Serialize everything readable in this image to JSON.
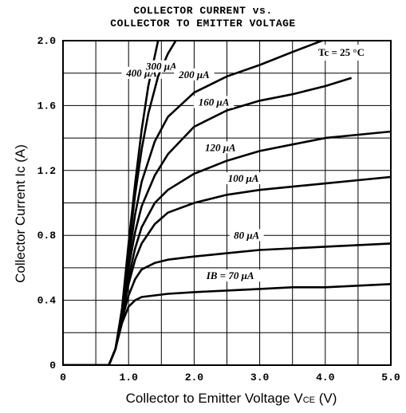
{
  "chart_data": {
    "type": "line",
    "title": [
      "COLLECTOR CURRENT vs.",
      "COLLECTOR TO EMITTER VOLTAGE"
    ],
    "xlabel": {
      "main": "Collector to Emitter Voltage  V",
      "sub": "CE",
      "unit": "  (V)"
    },
    "ylabel": "Collector Current  Ic  (A)",
    "xlim": [
      0,
      5.0
    ],
    "ylim": [
      0,
      2.0
    ],
    "x_ticks": [
      0,
      1.0,
      2.0,
      3.0,
      4.0,
      5.0
    ],
    "x_tick_labels": [
      "0",
      "1.0",
      "2.0",
      "3.0",
      "4.0",
      "5.0"
    ],
    "y_ticks": [
      0,
      0.4,
      0.8,
      1.2,
      1.6,
      2.0
    ],
    "y_tick_labels": [
      "0",
      "0.4",
      "0.8",
      "1.2",
      "1.6",
      "2.0"
    ],
    "grid": true,
    "annotation": "Tc = 25 °C",
    "series": [
      {
        "name": "400 μA",
        "label_at": [
          1.2,
          1.78
        ],
        "points": [
          [
            0,
            0
          ],
          [
            0.7,
            0
          ],
          [
            0.8,
            0.1
          ],
          [
            0.9,
            0.35
          ],
          [
            1.0,
            0.75
          ],
          [
            1.1,
            1.12
          ],
          [
            1.2,
            1.45
          ],
          [
            1.3,
            1.72
          ],
          [
            1.45,
            2.0
          ]
        ]
      },
      {
        "name": "300 μA",
        "label_at": [
          1.5,
          1.82
        ],
        "points": [
          [
            0,
            0
          ],
          [
            0.7,
            0
          ],
          [
            0.8,
            0.1
          ],
          [
            0.9,
            0.34
          ],
          [
            1.0,
            0.72
          ],
          [
            1.1,
            1.05
          ],
          [
            1.2,
            1.33
          ],
          [
            1.3,
            1.55
          ],
          [
            1.45,
            1.78
          ],
          [
            1.6,
            1.92
          ],
          [
            1.72,
            2.0
          ]
        ]
      },
      {
        "name": "200 μA",
        "label_at": [
          2.0,
          1.77
        ],
        "points": [
          [
            0,
            0
          ],
          [
            0.7,
            0
          ],
          [
            0.8,
            0.1
          ],
          [
            0.9,
            0.33
          ],
          [
            1.0,
            0.65
          ],
          [
            1.1,
            0.93
          ],
          [
            1.2,
            1.13
          ],
          [
            1.4,
            1.38
          ],
          [
            1.6,
            1.53
          ],
          [
            2.0,
            1.68
          ],
          [
            2.5,
            1.78
          ],
          [
            3.0,
            1.85
          ],
          [
            3.5,
            1.93
          ],
          [
            3.95,
            2.0
          ]
        ]
      },
      {
        "name": "160 μA",
        "label_at": [
          2.3,
          1.6
        ],
        "points": [
          [
            0,
            0
          ],
          [
            0.7,
            0
          ],
          [
            0.8,
            0.1
          ],
          [
            0.9,
            0.32
          ],
          [
            1.0,
            0.6
          ],
          [
            1.1,
            0.82
          ],
          [
            1.2,
            0.98
          ],
          [
            1.4,
            1.17
          ],
          [
            1.6,
            1.3
          ],
          [
            2.0,
            1.47
          ],
          [
            2.5,
            1.57
          ],
          [
            3.0,
            1.63
          ],
          [
            3.5,
            1.67
          ],
          [
            4.0,
            1.72
          ],
          [
            4.4,
            1.77
          ]
        ]
      },
      {
        "name": "120 μA",
        "label_at": [
          2.4,
          1.32
        ],
        "points": [
          [
            0,
            0
          ],
          [
            0.7,
            0
          ],
          [
            0.8,
            0.1
          ],
          [
            0.9,
            0.31
          ],
          [
            1.0,
            0.54
          ],
          [
            1.1,
            0.72
          ],
          [
            1.2,
            0.85
          ],
          [
            1.4,
            1.0
          ],
          [
            1.6,
            1.08
          ],
          [
            2.0,
            1.18
          ],
          [
            2.5,
            1.26
          ],
          [
            3.0,
            1.32
          ],
          [
            3.5,
            1.36
          ],
          [
            4.0,
            1.4
          ],
          [
            4.5,
            1.42
          ],
          [
            5.0,
            1.44
          ]
        ]
      },
      {
        "name": "100 μA",
        "label_at": [
          2.75,
          1.13
        ],
        "points": [
          [
            0,
            0
          ],
          [
            0.7,
            0
          ],
          [
            0.8,
            0.1
          ],
          [
            0.9,
            0.3
          ],
          [
            1.0,
            0.5
          ],
          [
            1.1,
            0.65
          ],
          [
            1.2,
            0.75
          ],
          [
            1.4,
            0.87
          ],
          [
            1.6,
            0.94
          ],
          [
            2.0,
            1.0
          ],
          [
            2.5,
            1.05
          ],
          [
            3.0,
            1.08
          ],
          [
            3.5,
            1.1
          ],
          [
            4.0,
            1.12
          ],
          [
            4.5,
            1.14
          ],
          [
            5.0,
            1.16
          ]
        ]
      },
      {
        "name": "80 μA",
        "label_at": [
          2.8,
          0.78
        ],
        "points": [
          [
            0,
            0
          ],
          [
            0.7,
            0
          ],
          [
            0.8,
            0.1
          ],
          [
            0.9,
            0.28
          ],
          [
            1.0,
            0.43
          ],
          [
            1.1,
            0.53
          ],
          [
            1.2,
            0.59
          ],
          [
            1.4,
            0.63
          ],
          [
            1.6,
            0.65
          ],
          [
            2.0,
            0.67
          ],
          [
            2.5,
            0.69
          ],
          [
            3.0,
            0.71
          ],
          [
            3.5,
            0.72
          ],
          [
            4.0,
            0.73
          ],
          [
            4.5,
            0.74
          ],
          [
            5.0,
            0.75
          ]
        ]
      },
      {
        "name": "IB = 70 μA",
        "label_at": [
          2.55,
          0.53
        ],
        "points": [
          [
            0,
            0
          ],
          [
            0.7,
            0
          ],
          [
            0.8,
            0.1
          ],
          [
            0.9,
            0.26
          ],
          [
            1.0,
            0.36
          ],
          [
            1.1,
            0.4
          ],
          [
            1.2,
            0.42
          ],
          [
            1.4,
            0.43
          ],
          [
            1.6,
            0.44
          ],
          [
            2.0,
            0.45
          ],
          [
            2.5,
            0.46
          ],
          [
            3.0,
            0.47
          ],
          [
            3.5,
            0.48
          ],
          [
            4.0,
            0.48
          ],
          [
            4.5,
            0.49
          ],
          [
            5.0,
            0.5
          ]
        ]
      }
    ]
  }
}
